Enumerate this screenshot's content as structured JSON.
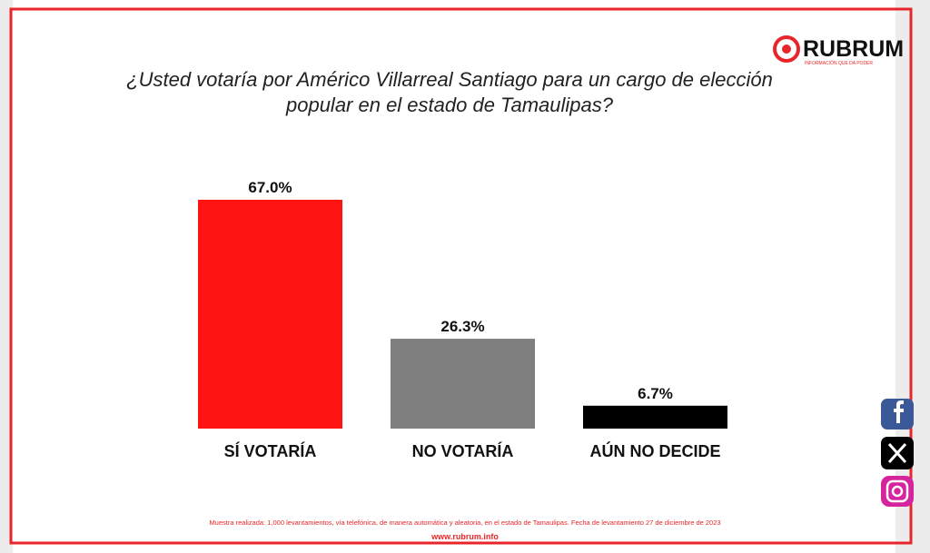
{
  "chart_data": {
    "type": "bar",
    "title": "¿Usted votaría por Américo Villarreal Santiago para un cargo de elección popular en el estado de Tamaulipas?",
    "categories": [
      "SÍ VOTARÍA",
      "NO VOTARÍA",
      "AÚN NO DECIDE"
    ],
    "values": [
      67.0,
      26.3,
      6.7
    ],
    "value_labels": [
      "67.0%",
      "26.3%",
      "6.7%"
    ],
    "colors": [
      "#ff1414",
      "#7f7f7f",
      "#000000"
    ]
  },
  "brand": {
    "name": "RUBRUM",
    "tagline": "INFORMACIÓN QUE DA PODER"
  },
  "footer": {
    "note": "Muestra realizada: 1,000 levantamientos, vía telefónica, de manera automática y aleatoria, en el estado de Tamaulipas. Fecha de levantamiento 27 de diciembre de 2023",
    "website": "www.rubrum.info"
  }
}
